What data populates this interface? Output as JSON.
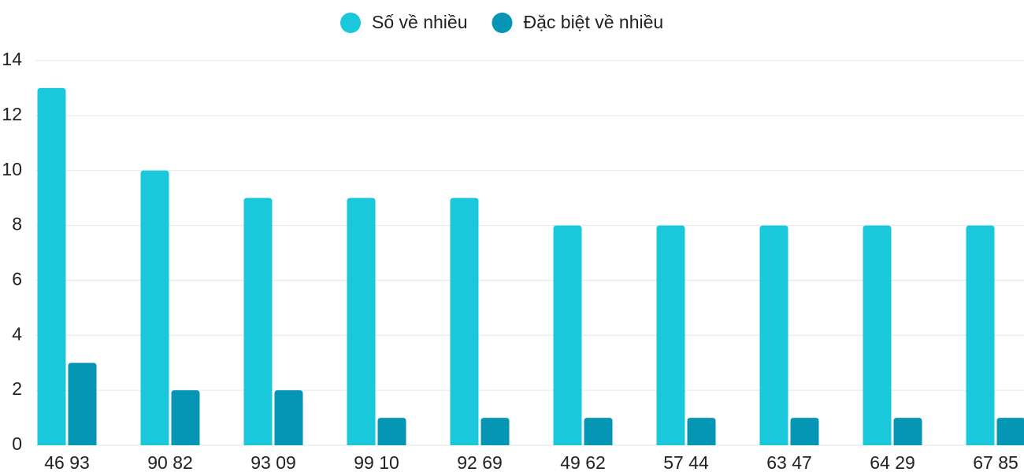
{
  "chart_data": {
    "type": "bar",
    "categories": [
      "46 93",
      "90 82",
      "93 09",
      "99 10",
      "92 69",
      "49 62",
      "57 44",
      "63 47",
      "64 29",
      "67 85"
    ],
    "series": [
      {
        "name": "Số về nhiều",
        "color": "#1ac8db",
        "values": [
          13,
          10,
          9,
          9,
          9,
          8,
          8,
          8,
          8,
          8
        ]
      },
      {
        "name": "Đặc biệt về nhiều",
        "color": "#0595b5",
        "values": [
          3,
          2,
          2,
          1,
          1,
          1,
          1,
          1,
          1,
          1
        ]
      }
    ],
    "ylim": [
      0,
      14
    ],
    "yticks": [
      0,
      2,
      4,
      6,
      8,
      10,
      12,
      14
    ],
    "grid": true,
    "legend": "top"
  }
}
